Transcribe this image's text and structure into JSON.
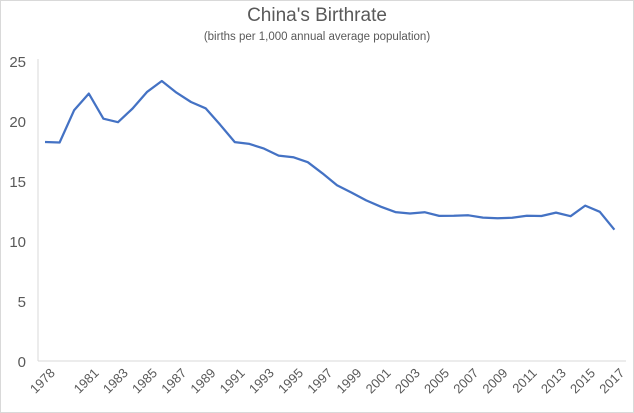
{
  "chart_data": {
    "type": "line",
    "title": "China's Birthrate",
    "subtitle": "(births per 1,000 annual average population)",
    "xlabel": "",
    "ylabel": "",
    "ylim": [
      0,
      25
    ],
    "yticks": [
      0,
      5,
      10,
      15,
      20,
      25
    ],
    "x": [
      1978,
      1979,
      1980,
      1981,
      1982,
      1983,
      1984,
      1985,
      1986,
      1987,
      1988,
      1989,
      1990,
      1991,
      1992,
      1993,
      1994,
      1995,
      1996,
      1997,
      1998,
      1999,
      2000,
      2001,
      2002,
      2003,
      2004,
      2005,
      2006,
      2007,
      2008,
      2009,
      2010,
      2011,
      2012,
      2013,
      2014,
      2015,
      2016,
      2017,
      2018
    ],
    "xtick_labels": [
      "1978",
      "1981",
      "1983",
      "1985",
      "1987",
      "1989",
      "1991",
      "1993",
      "1995",
      "1997",
      "1999",
      "2001",
      "2003",
      "2005",
      "2007",
      "2009",
      "2011",
      "2013",
      "2015",
      "2017"
    ],
    "xtick_years": [
      1978,
      1981,
      1983,
      1985,
      1987,
      1989,
      1991,
      1993,
      1995,
      1997,
      1999,
      2001,
      2003,
      2005,
      2007,
      2009,
      2011,
      2013,
      2015,
      2017
    ],
    "series": [
      {
        "name": "",
        "color": "#4472c4",
        "values": [
          18.25,
          18.21,
          20.91,
          22.28,
          20.19,
          19.9,
          21.04,
          22.43,
          23.33,
          22.37,
          21.58,
          21.06,
          19.68,
          18.24,
          18.09,
          17.7,
          17.12,
          16.98,
          16.57,
          15.64,
          14.64,
          14.03,
          13.38,
          12.86,
          12.41,
          12.29,
          12.4,
          12.09,
          12.1,
          12.14,
          11.95,
          11.9,
          11.93,
          12.1,
          12.08,
          12.37,
          12.07,
          12.95,
          12.43,
          10.94,
          null
        ],
        "note": ""
      }
    ],
    "grid": false,
    "legend": "none"
  }
}
